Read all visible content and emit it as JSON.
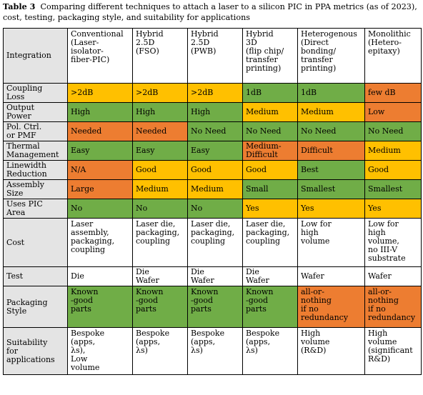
{
  "caption": {
    "label": "Table 3",
    "text": "Comparing different techniques to attach a laser to a silicon PIC in PPA metrics (as of 2023), cost, testing, packaging style, and suitability for applications"
  },
  "colors": {
    "good": "#70ad47",
    "medium": "#ffc000",
    "bad": "#ed7d31",
    "header": "#e4e4e4"
  },
  "header": {
    "label": "Integration",
    "columns": [
      "Conventional\n(Laser-\nisolator-\nfiber-PIC)",
      "Hybrid\n2.5D\n(FSO)",
      "Hybrid\n2.5D\n(PWB)",
      "Hybrid\n3D\n(flip chip/\ntransfer\nprinting)",
      "Heterogenous\n(Direct\nbonding/\ntransfer\nprinting)",
      "Monolithic\n(Hetero-\nepitaxy)"
    ]
  },
  "rows": [
    {
      "label": "Coupling\nLoss",
      "cells": [
        {
          "text": ">2dB",
          "color": "medium"
        },
        {
          "text": ">2dB",
          "color": "medium"
        },
        {
          "text": ">2dB",
          "color": "medium"
        },
        {
          "text": "1dB",
          "color": "good"
        },
        {
          "text": "1dB",
          "color": "good"
        },
        {
          "text": "few dB",
          "color": "bad"
        }
      ]
    },
    {
      "label": "Output\nPower",
      "cells": [
        {
          "text": "High",
          "color": "good"
        },
        {
          "text": "High",
          "color": "good"
        },
        {
          "text": "High",
          "color": "good"
        },
        {
          "text": "Medium",
          "color": "medium"
        },
        {
          "text": "Medium",
          "color": "medium"
        },
        {
          "text": "Low",
          "color": "bad"
        }
      ]
    },
    {
      "label": "Pol. Ctrl.\nor PMF",
      "cells": [
        {
          "text": "Needed",
          "color": "bad"
        },
        {
          "text": "Needed",
          "color": "bad"
        },
        {
          "text": "No Need",
          "color": "good"
        },
        {
          "text": "No Need",
          "color": "good"
        },
        {
          "text": "No Need",
          "color": "good"
        },
        {
          "text": "No Need",
          "color": "good"
        }
      ]
    },
    {
      "label": "Thermal\nManagement",
      "cells": [
        {
          "text": "Easy",
          "color": "good"
        },
        {
          "text": "Easy",
          "color": "good"
        },
        {
          "text": "Easy",
          "color": "good"
        },
        {
          "text": "Medium-\nDifficult",
          "color": "bad"
        },
        {
          "text": "Difficult",
          "color": "bad"
        },
        {
          "text": "Medium",
          "color": "medium"
        }
      ]
    },
    {
      "label": "Linewidth\nReduction",
      "cells": [
        {
          "text": "N/A",
          "color": "bad"
        },
        {
          "text": "Good",
          "color": "medium"
        },
        {
          "text": "Good",
          "color": "medium"
        },
        {
          "text": "Good",
          "color": "medium"
        },
        {
          "text": "Best",
          "color": "good"
        },
        {
          "text": "Good",
          "color": "medium"
        }
      ]
    },
    {
      "label": "Assembly\nSize",
      "cells": [
        {
          "text": "Large",
          "color": "bad"
        },
        {
          "text": "Medium",
          "color": "medium"
        },
        {
          "text": "Medium",
          "color": "medium"
        },
        {
          "text": "Small",
          "color": "good"
        },
        {
          "text": "Smallest",
          "color": "good"
        },
        {
          "text": "Smallest",
          "color": "good"
        }
      ]
    },
    {
      "label": "Uses PIC\nArea",
      "cells": [
        {
          "text": "No",
          "color": "good"
        },
        {
          "text": "No",
          "color": "good"
        },
        {
          "text": "No",
          "color": "good"
        },
        {
          "text": "Yes",
          "color": "medium"
        },
        {
          "text": "Yes",
          "color": "medium"
        },
        {
          "text": "Yes",
          "color": "medium"
        }
      ]
    },
    {
      "label": "Cost",
      "cells": [
        {
          "text": "Laser\nassembly,\npackaging,\ncoupling",
          "color": "none"
        },
        {
          "text": "Laser die,\npackaging,\ncoupling",
          "color": "none"
        },
        {
          "text": "Laser die,\npackaging,\ncoupling",
          "color": "none"
        },
        {
          "text": "Laser die,\npackaging,\ncoupling",
          "color": "none"
        },
        {
          "text": "Low for\nhigh\nvolume",
          "color": "none"
        },
        {
          "text": "Low for\nhigh\nvolume,\nno III-V\nsubstrate",
          "color": "none"
        }
      ]
    },
    {
      "label": "Test",
      "cells": [
        {
          "text": "Die",
          "color": "none"
        },
        {
          "text": "Die\nWafer",
          "color": "none"
        },
        {
          "text": "Die\nWafer",
          "color": "none"
        },
        {
          "text": "Die\nWafer",
          "color": "none"
        },
        {
          "text": "Wafer",
          "color": "none"
        },
        {
          "text": "Wafer",
          "color": "none"
        }
      ]
    },
    {
      "label": "Packaging\nStyle",
      "cells": [
        {
          "text": "Known\n-good\nparts",
          "color": "good"
        },
        {
          "text": "Known\n-good\nparts",
          "color": "good"
        },
        {
          "text": "Known\n-good\nparts",
          "color": "good"
        },
        {
          "text": "Known\n-good\nparts",
          "color": "good"
        },
        {
          "text": "all-or-\nnothing\nif no\nredundancy",
          "color": "bad"
        },
        {
          "text": "all-or-\nnothing\nif no\nredundancy",
          "color": "bad"
        }
      ]
    },
    {
      "label": "Suitability\nfor\napplications",
      "cells": [
        {
          "text": "Bespoke\n(apps,\nλs),\nLow\nvolume",
          "color": "none"
        },
        {
          "text": "Bespoke\n(apps,\nλs)",
          "color": "none"
        },
        {
          "text": "Bespoke\n(apps,\nλs)",
          "color": "none"
        },
        {
          "text": "Bespoke\n(apps,\nλs)",
          "color": "none"
        },
        {
          "text": "High\nvolume\n(R&D)",
          "color": "none"
        },
        {
          "text": "High\nvolume\n(significant\nR&D)",
          "color": "none"
        }
      ]
    }
  ]
}
